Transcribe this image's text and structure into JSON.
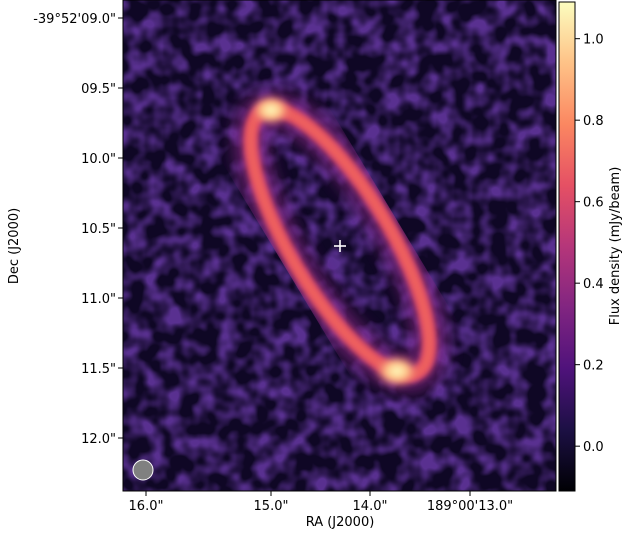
{
  "chart_data": {
    "type": "heatmap",
    "title": "",
    "xlabel": "RA (J2000)",
    "ylabel": "Dec (J2000)",
    "x_ticks": [
      "16.0\"",
      "15.0\"",
      "14.0\"",
      "189°00'13.0\""
    ],
    "y_ticks": [
      "-39°52'09.0\"",
      "09.5\"",
      "10.0\"",
      "10.5\"",
      "11.0\"",
      "11.5\"",
      "12.0\""
    ],
    "colorbar": {
      "label": "Flux density (mJy/beam)",
      "ticks": [
        "0.0",
        "0.2",
        "0.4",
        "0.6",
        "0.8",
        "1.0"
      ],
      "tick_values": [
        0.0,
        0.2,
        0.4,
        0.6,
        0.8,
        1.0
      ],
      "range": [
        -0.11,
        1.09
      ],
      "colormap": "magma"
    },
    "features": {
      "ring": "inclined elliptical ring of emission, brightest at the two ends of the major axis",
      "center_marker": "white plus sign at the ring center",
      "beam": "grey filled circle in the lower-left corner"
    },
    "colors": {
      "background_low": "#000004",
      "noise": "#2c115f",
      "ring": "#e75263",
      "peak": "#fcfdbf",
      "beam": "#808080",
      "marker": "#ffffff"
    }
  }
}
